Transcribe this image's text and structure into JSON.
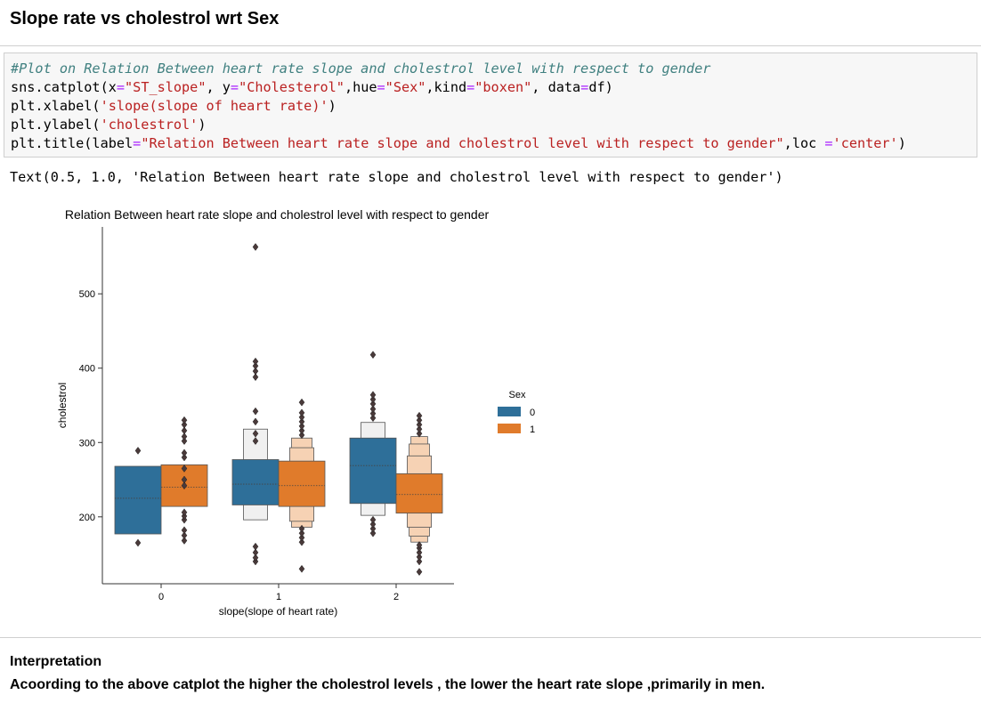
{
  "heading": "Slope rate vs cholestrol wrt Sex",
  "code": {
    "comment": "#Plot on Relation Between heart rate slope and cholestrol level with respect to gender",
    "line2": {
      "a": "sns.catplot(x",
      "b": "=",
      "c": "\"ST_slope\"",
      "d": ", y",
      "e": "=",
      "f": "\"Cholesterol\"",
      "g": ",hue",
      "h": "=",
      "i": "\"Sex\"",
      "j": ",kind",
      "k": "=",
      "l": "\"boxen\"",
      "m": ", data",
      "n": "=",
      "o": "df)"
    },
    "line3": {
      "a": "plt.xlabel(",
      "b": "'slope(slope of heart rate)'",
      "c": ")"
    },
    "line4": {
      "a": "plt.ylabel(",
      "b": "'cholestrol'",
      "c": ")"
    },
    "line5": {
      "a": "plt.title(label",
      "b": "=",
      "c": "\"Relation Between heart rate slope and cholestrol level with respect to gender\"",
      "d": ",loc ",
      "e": "=",
      "f": "'center'",
      "g": ")"
    }
  },
  "output_text": "Text(0.5, 1.0, 'Relation Between heart rate slope and cholestrol level with respect to gender')",
  "chart_data": {
    "type": "boxen",
    "title": "Relation Between heart rate slope and cholestrol level with respect to gender",
    "xlabel": "slope(slope of heart rate)",
    "ylabel": "cholestrol",
    "categories": [
      "0",
      "1",
      "2"
    ],
    "yticks": [
      200,
      300,
      400,
      500
    ],
    "ylim": [
      110,
      590
    ],
    "grid": false,
    "legend": {
      "title": "Sex",
      "placement": "right",
      "entries": [
        "0",
        "1"
      ]
    },
    "colors": {
      "0": "#2e6f99",
      "1": "#e07b2b",
      "0_light": "#f0f0f0",
      "1_light": "#f6d2b4"
    },
    "series": [
      {
        "name": "0",
        "boxes": [
          {
            "category": "0",
            "median": 225,
            "levels": [
              [
                177,
                268
              ]
            ],
            "outliers": [
              165,
              289
            ]
          },
          {
            "category": "1",
            "median": 244,
            "levels": [
              [
                216,
                277
              ],
              [
                196,
                318
              ]
            ],
            "outliers": [
              140,
              145,
              152,
              160,
              302,
              312,
              328,
              342,
              388,
              396,
              403,
              409,
              563
            ]
          },
          {
            "category": "2",
            "median": 269,
            "levels": [
              [
                218,
                306
              ],
              [
                202,
                327
              ]
            ],
            "outliers": [
              178,
              184,
              190,
              196,
              333,
              339,
              345,
              352,
              358,
              364,
              418
            ]
          }
        ]
      },
      {
        "name": "1",
        "boxes": [
          {
            "category": "0",
            "median": 240,
            "levels": [
              [
                214,
                270
              ]
            ],
            "outliers": [
              168,
              175,
              182,
              196,
              201,
              206,
              242,
              250,
              265,
              280,
              286,
              302,
              308,
              316,
              324,
              330
            ]
          },
          {
            "category": "1",
            "median": 242,
            "levels": [
              [
                214,
                275
              ],
              [
                194,
                293
              ],
              [
                186,
                306
              ]
            ],
            "outliers": [
              130,
              166,
              172,
              178,
              184,
              310,
              316,
              322,
              328,
              334,
              340,
              354
            ]
          },
          {
            "category": "2",
            "median": 230,
            "levels": [
              [
                205,
                258
              ],
              [
                186,
                282
              ],
              [
                174,
                298
              ],
              [
                166,
                308
              ]
            ],
            "outliers": [
              126,
              140,
              146,
              152,
              158,
              162,
              312,
              318,
              324,
              330,
              336
            ]
          }
        ]
      }
    ]
  },
  "interpretation": {
    "title": "Interpretation",
    "text": "Acoording to the above catplot the higher the cholestrol levels , the lower the heart rate slope ,primarily in men."
  }
}
